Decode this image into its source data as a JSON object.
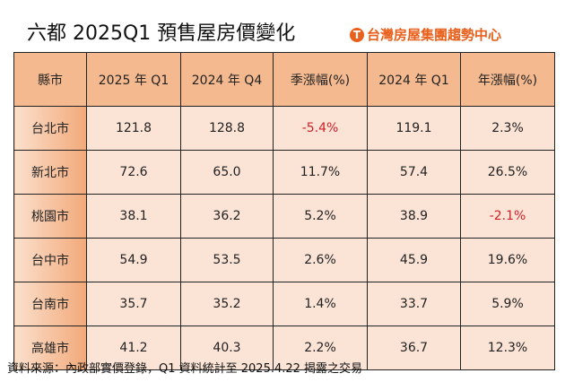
{
  "title": "六都 2025Q1 預售屋房價變化",
  "logo": {
    "text": "台灣房屋集團趨勢中心",
    "mark": "T",
    "color": "#e8601c"
  },
  "table": {
    "headers": [
      "縣市",
      "2025 年 Q1",
      "2024 年 Q4",
      "季漲幅(%)",
      "2024 年 Q1",
      "年漲幅(%)"
    ],
    "rows": [
      [
        "台北市",
        "121.8",
        "128.8",
        "-5.4%",
        "119.1",
        "2.3%"
      ],
      [
        "新北市",
        "72.6",
        "65.0",
        "11.7%",
        "57.4",
        "26.5%"
      ],
      [
        "桃園市",
        "38.1",
        "36.2",
        "5.2%",
        "38.9",
        "-2.1%"
      ],
      [
        "台中市",
        "54.9",
        "53.5",
        "2.6%",
        "45.9",
        "19.6%"
      ],
      [
        "台南市",
        "35.7",
        "35.2",
        "1.4%",
        "33.7",
        "5.9%"
      ],
      [
        "高雄市",
        "41.2",
        "40.3",
        "2.2%",
        "36.7",
        "12.3%"
      ]
    ]
  },
  "colors": {
    "header": "#f4b98f",
    "cell": "#fbe4d6",
    "negative": "#d0202a"
  },
  "source": "資料來源：內政部實價登錄，Q1 資料統計至 2025.4.22 揭露之交易"
}
